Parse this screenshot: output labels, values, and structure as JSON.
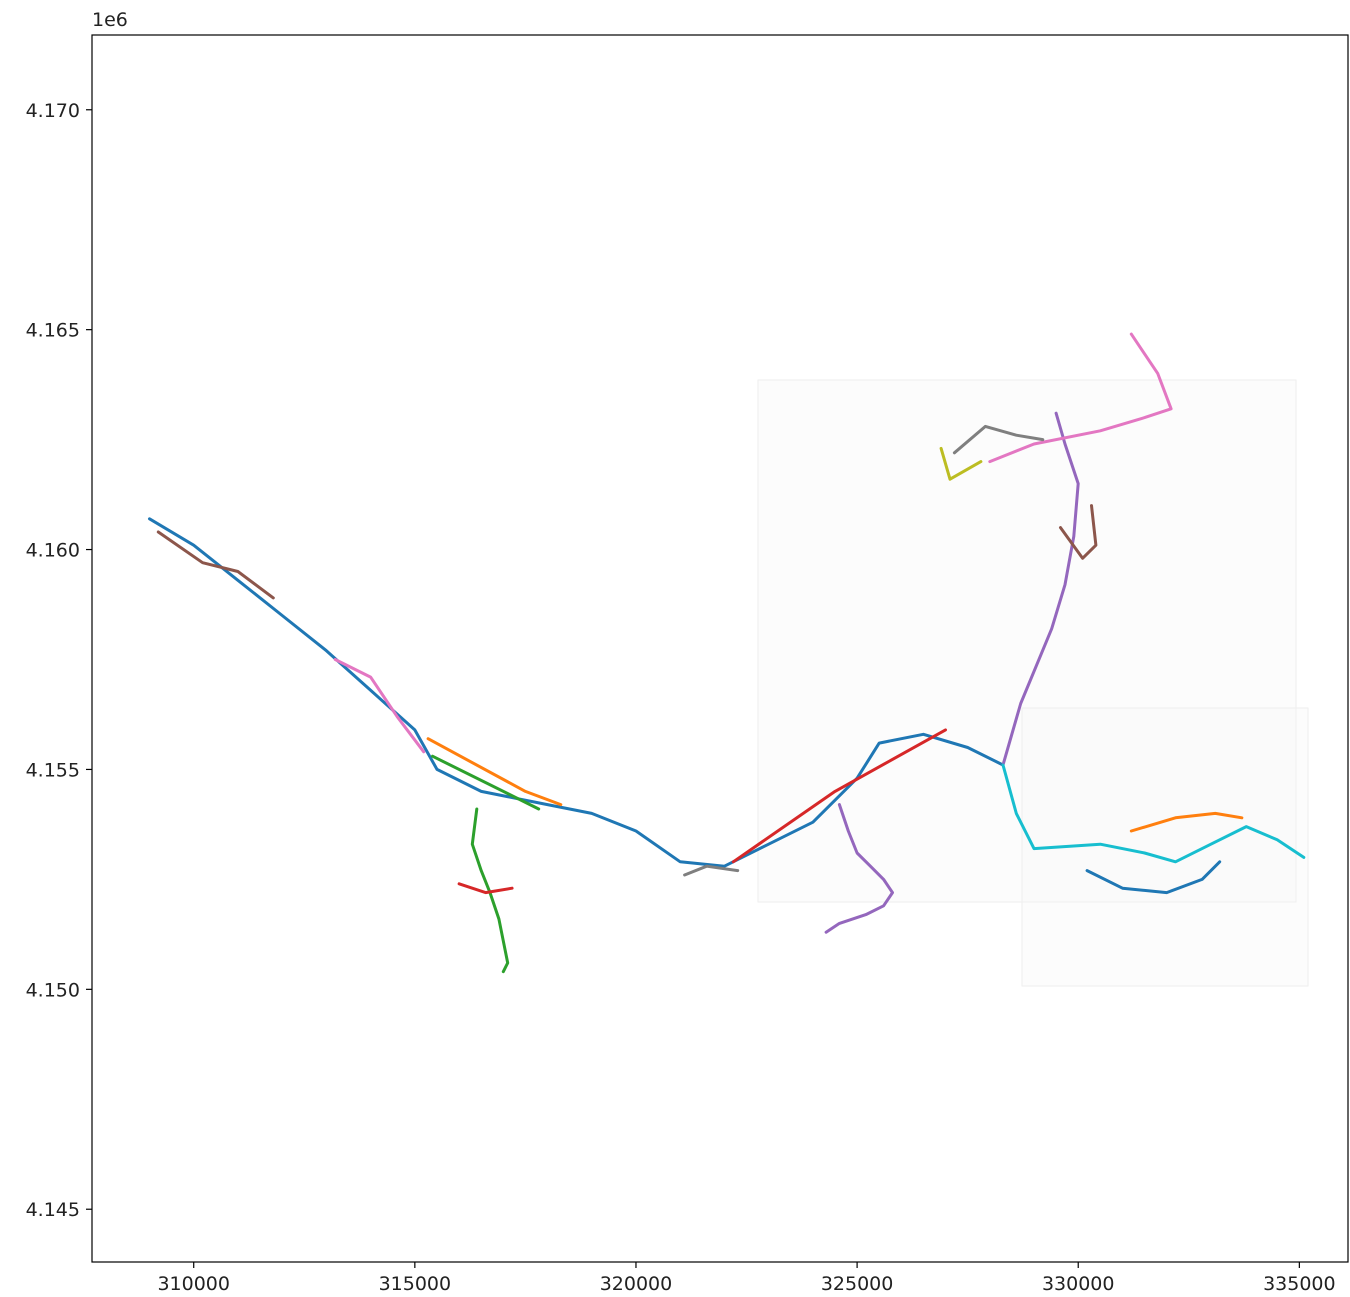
{
  "chart_data": {
    "type": "line",
    "title": "",
    "xlabel": "",
    "ylabel": "",
    "y_offset_label": "1e6",
    "xlim": [
      307700,
      336100
    ],
    "ylim": [
      4143800,
      4171700
    ],
    "grid": false,
    "legend": "none",
    "x_ticks": [
      310000,
      315000,
      320000,
      325000,
      330000,
      335000
    ],
    "x_tick_labels": [
      "310000",
      "315000",
      "320000",
      "325000",
      "330000",
      "335000"
    ],
    "y_ticks": [
      4145000,
      4150000,
      4155000,
      4160000,
      4165000,
      4170000
    ],
    "y_tick_labels": [
      "4.145",
      "4.150",
      "4.155",
      "4.160",
      "4.165",
      "4.170"
    ],
    "palette": [
      "#1f77b4",
      "#ff7f0e",
      "#2ca02c",
      "#d62728",
      "#9467bd",
      "#8c564b",
      "#e377c2",
      "#7f7f7f",
      "#bcbd22",
      "#17becf"
    ],
    "series": [
      {
        "x": [
          309000,
          310000,
          311000,
          312000,
          313000,
          314000,
          315000,
          315500,
          316500,
          318000,
          319000,
          320000,
          321000,
          322000,
          323000,
          324000,
          325000,
          325500,
          326500,
          327500,
          328300
        ],
        "y": [
          4160700,
          4160100,
          4159300,
          4158500,
          4157700,
          4156800,
          4155900,
          4155000,
          4154500,
          4154200,
          4154000,
          4153600,
          4152900,
          4152800,
          4153300,
          4153800,
          4154800,
          4155600,
          4155800,
          4155500,
          4155100
        ]
      },
      {
        "x": [
          315300,
          317500,
          318300
        ],
        "y": [
          4155700,
          4154500,
          4154200
        ]
      },
      {
        "x": [
          315400,
          317800
        ],
        "y": [
          4155300,
          4154100
        ]
      },
      {
        "x": [
          322200,
          324500,
          327000
        ],
        "y": [
          4152900,
          4154500,
          4155900
        ]
      },
      {
        "x": [
          328300,
          328700,
          329400,
          329700,
          329900,
          330000,
          329700,
          329500
        ],
        "y": [
          4155100,
          4156500,
          4158200,
          4159200,
          4160300,
          4161500,
          4162400,
          4163100
        ]
      },
      {
        "x": [
          329600,
          330100,
          330400,
          330300
        ],
        "y": [
          4160500,
          4159800,
          4160100,
          4161000
        ]
      },
      {
        "x": [
          328000,
          329000,
          330500,
          331500,
          332100,
          331800,
          331200
        ],
        "y": [
          4162000,
          4162400,
          4162700,
          4163000,
          4163200,
          4164000,
          4164900
        ]
      },
      {
        "x": [
          327200,
          327900,
          328600,
          329200
        ],
        "y": [
          4162200,
          4162800,
          4162600,
          4162500
        ]
      },
      {
        "x": [
          327800,
          327100,
          326900
        ],
        "y": [
          4162000,
          4161600,
          4162300
        ]
      },
      {
        "x": [
          328300,
          328600,
          329000,
          330500,
          331500,
          332200,
          333000,
          333800,
          334500,
          335100
        ],
        "y": [
          4155100,
          4154000,
          4153200,
          4153300,
          4153100,
          4152900,
          4153300,
          4153700,
          4153400,
          4153000
        ]
      },
      {
        "x": [
          330200,
          331000,
          332000,
          332800,
          333200
        ],
        "y": [
          4152700,
          4152300,
          4152200,
          4152500,
          4152900
        ]
      },
      {
        "x": [
          331200,
          332200,
          333100,
          333700
        ],
        "y": [
          4153600,
          4153900,
          4154000,
          4153900
        ]
      },
      {
        "x": [
          316400,
          316300,
          316500,
          316700,
          316900,
          317000,
          317100,
          317000
        ],
        "y": [
          4154100,
          4153300,
          4152700,
          4152200,
          4151600,
          4151100,
          4150600,
          4150400
        ]
      },
      {
        "x": [
          316000,
          316600,
          317200
        ],
        "y": [
          4152400,
          4152200,
          4152300
        ]
      },
      {
        "x": [
          324600,
          324800,
          325000,
          325300,
          325600,
          325800,
          325600,
          325200,
          324600,
          324300
        ],
        "y": [
          4154200,
          4153600,
          4153100,
          4152800,
          4152500,
          4152200,
          4151900,
          4151700,
          4151500,
          4151300
        ]
      },
      {
        "x": [
          309200,
          310200,
          311000,
          311800
        ],
        "y": [
          4160400,
          4159700,
          4159500,
          4158900
        ]
      },
      {
        "x": [
          313200,
          314000,
          314600,
          315200
        ],
        "y": [
          4157500,
          4157100,
          4156200,
          4155400
        ]
      },
      {
        "x": [
          321100,
          321600,
          322300
        ],
        "y": [
          4152600,
          4152800,
          4152700
        ]
      }
    ]
  }
}
